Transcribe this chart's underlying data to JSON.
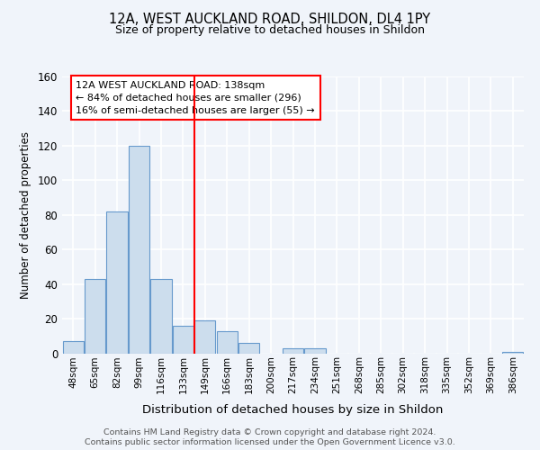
{
  "title1": "12A, WEST AUCKLAND ROAD, SHILDON, DL4 1PY",
  "title2": "Size of property relative to detached houses in Shildon",
  "xlabel": "Distribution of detached houses by size in Shildon",
  "ylabel": "Number of detached properties",
  "bar_labels": [
    "48sqm",
    "65sqm",
    "82sqm",
    "99sqm",
    "116sqm",
    "133sqm",
    "149sqm",
    "166sqm",
    "183sqm",
    "200sqm",
    "217sqm",
    "234sqm",
    "251sqm",
    "268sqm",
    "285sqm",
    "302sqm",
    "318sqm",
    "335sqm",
    "352sqm",
    "369sqm",
    "386sqm"
  ],
  "bar_heights": [
    7,
    43,
    82,
    120,
    43,
    16,
    19,
    13,
    6,
    0,
    3,
    3,
    0,
    0,
    0,
    0,
    0,
    0,
    0,
    0,
    1
  ],
  "bar_color": "#ccdded",
  "bar_edge_color": "#6699cc",
  "red_line_x": 5.5,
  "red_line_label1": "12A WEST AUCKLAND ROAD: 138sqm",
  "red_line_label2": "← 84% of detached houses are smaller (296)",
  "red_line_label3": "16% of semi-detached houses are larger (55) →",
  "ylim": [
    0,
    160
  ],
  "yticks": [
    0,
    20,
    40,
    60,
    80,
    100,
    120,
    140,
    160
  ],
  "footer1": "Contains HM Land Registry data © Crown copyright and database right 2024.",
  "footer2": "Contains public sector information licensed under the Open Government Licence v3.0.",
  "bg_color": "#f0f4fa",
  "plot_bg_color": "#f0f4fa",
  "grid_color": "#ffffff"
}
